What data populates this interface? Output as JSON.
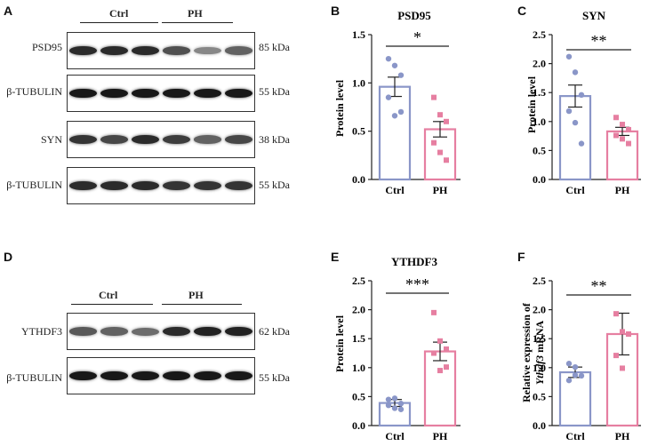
{
  "panels": {
    "A": {
      "letter": "A",
      "group_labels": [
        "Ctrl",
        "PH"
      ],
      "blots": [
        {
          "name": "psd95",
          "label": "PSD95",
          "kda": "85 kDa",
          "intensity": [
            0.85,
            0.85,
            0.85,
            0.65,
            0.35,
            0.55
          ]
        },
        {
          "name": "tubulin1",
          "label": "β-TUBULIN",
          "kda": "55 kDa",
          "intensity": [
            0.95,
            0.95,
            0.95,
            0.95,
            0.95,
            0.95
          ]
        },
        {
          "name": "syn",
          "label": "SYN",
          "kda": "38 kDa",
          "intensity": [
            0.8,
            0.7,
            0.85,
            0.75,
            0.55,
            0.7
          ]
        },
        {
          "name": "tubulin2",
          "label": "β-TUBULIN",
          "kda": "55 kDa",
          "intensity": [
            0.85,
            0.85,
            0.85,
            0.8,
            0.8,
            0.8
          ]
        }
      ]
    },
    "D": {
      "letter": "D",
      "group_labels": [
        "Ctrl",
        "PH"
      ],
      "blots": [
        {
          "name": "ythdf3",
          "label": "YTHDF3",
          "kda": "62 kDa",
          "intensity": [
            0.6,
            0.55,
            0.5,
            0.85,
            0.9,
            0.9
          ]
        },
        {
          "name": "tubulin3",
          "label": "β-TUBULIN",
          "kda": "55 kDa",
          "intensity": [
            0.95,
            0.95,
            0.95,
            0.95,
            0.95,
            0.95
          ]
        }
      ]
    }
  },
  "chart_data": [
    {
      "panel": "B",
      "type": "bar",
      "title": "PSD95",
      "xlabel": "",
      "ylabel": "Protein level",
      "ylim": [
        0,
        1.5
      ],
      "yticks": [
        "0.0",
        "0.5",
        "1.0",
        "1.5"
      ],
      "categories": [
        "Ctrl",
        "PH"
      ],
      "values": [
        0.96,
        0.52
      ],
      "sem": [
        0.1,
        0.08
      ],
      "points": [
        [
          1.25,
          1.18,
          1.08,
          0.85,
          0.66,
          0.7
        ],
        [
          0.85,
          0.67,
          0.6,
          0.38,
          0.28,
          0.2
        ]
      ],
      "significance": "*",
      "colors": [
        "#8a96c8",
        "#e67fa1"
      ]
    },
    {
      "panel": "C",
      "type": "bar",
      "title": "SYN",
      "xlabel": "",
      "ylabel": "Protein level",
      "ylim": [
        0,
        2.5
      ],
      "yticks": [
        "0.0",
        "0.5",
        "1.0",
        "1.5",
        "2.0",
        "2.5"
      ],
      "categories": [
        "Ctrl",
        "PH"
      ],
      "values": [
        1.44,
        0.83
      ],
      "sem": [
        0.19,
        0.07
      ],
      "points": [
        [
          2.12,
          1.85,
          1.46,
          1.18,
          0.98,
          0.62
        ],
        [
          1.07,
          0.95,
          0.86,
          0.76,
          0.7,
          0.62
        ]
      ],
      "significance": "**",
      "colors": [
        "#8a96c8",
        "#e67fa1"
      ]
    },
    {
      "panel": "E",
      "type": "bar",
      "title": "YTHDF3",
      "xlabel": "",
      "ylabel": "Protein level",
      "ylim": [
        0,
        2.5
      ],
      "yticks": [
        "0.0",
        "0.5",
        "1.0",
        "1.5",
        "2.0",
        "2.5"
      ],
      "categories": [
        "Ctrl",
        "PH"
      ],
      "values": [
        0.39,
        1.28
      ],
      "sem": [
        0.06,
        0.16
      ],
      "points": [
        [
          0.45,
          0.47,
          0.38,
          0.35,
          0.3,
          0.28
        ],
        [
          1.95,
          1.46,
          1.32,
          1.25,
          0.95,
          1.01
        ]
      ],
      "significance": "***",
      "colors": [
        "#8a96c8",
        "#e67fa1"
      ]
    },
    {
      "panel": "F",
      "type": "bar",
      "title": "",
      "xlabel": "",
      "ylabel": [
        "Relative expression of",
        "Ythdf3 mRNA"
      ],
      "ylim": [
        0,
        2.5
      ],
      "yticks": [
        "0.0",
        "0.5",
        "1.0",
        "1.5",
        "2.0",
        "2.5"
      ],
      "categories": [
        "Ctrl",
        "PH"
      ],
      "values": [
        0.92,
        1.58
      ],
      "sem": [
        0.09,
        0.36
      ],
      "points": [
        [
          1.07,
          1.01,
          0.86,
          0.78,
          0.87
        ],
        [
          1.93,
          1.62,
          1.58,
          1.21,
          0.99
        ]
      ],
      "significance": "**",
      "colors": [
        "#8a96c8",
        "#e67fa1"
      ]
    }
  ]
}
